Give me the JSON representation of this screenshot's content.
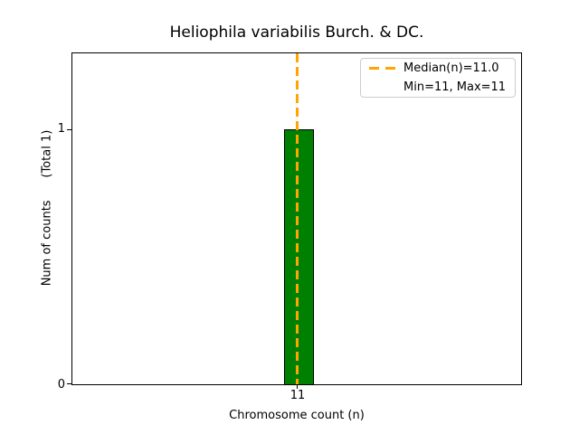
{
  "chart_data": {
    "type": "bar",
    "title": "Heliophila variabilis Burch. & DC.",
    "xlabel": "Chromosome count (n)",
    "ylabel": "Num of counts      (Total 1)",
    "categories": [
      "11"
    ],
    "values": [
      1
    ],
    "x_tick_labels": [
      "11"
    ],
    "y_tick_labels": [
      "0",
      "1"
    ],
    "ylim": [
      0,
      1.3
    ],
    "grid": false,
    "bar_color": "#008000",
    "bar_edge_color": "#000000",
    "median_line": {
      "value": 11.0,
      "orientation": "vertical",
      "style": "dashed",
      "color": "#ffa500"
    },
    "legend": {
      "position": "upper-right",
      "entries": [
        {
          "label": "Median(n)=11.0",
          "sample": "orange-dashed-line",
          "color": "#ffa500"
        },
        {
          "label": "Min=11, Max=11",
          "sample": "none"
        }
      ]
    }
  }
}
